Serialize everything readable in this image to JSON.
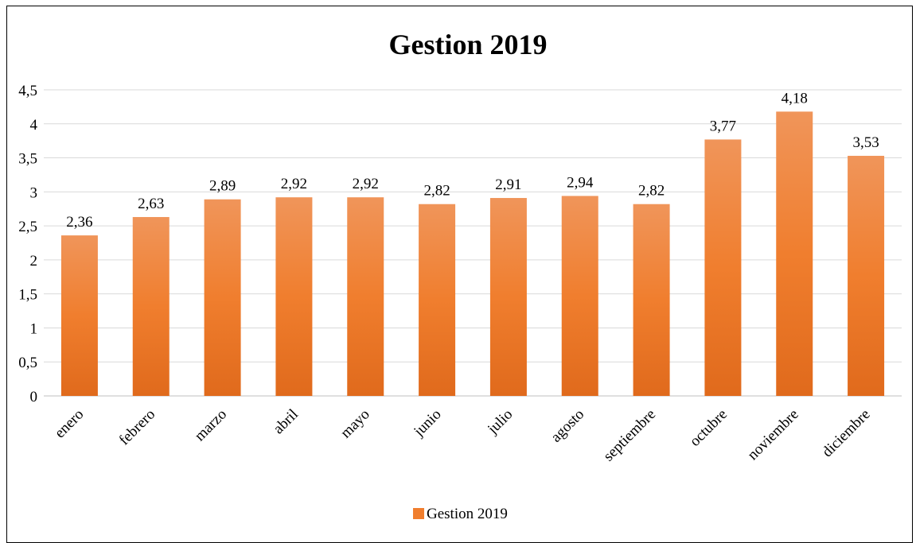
{
  "chart_data": {
    "type": "bar",
    "title": "Gestion 2019",
    "categories": [
      "enero",
      "febrero",
      "marzo",
      "abril",
      "mayo",
      "junio",
      "julio",
      "agosto",
      "septiembre",
      "octubre",
      "noviembre",
      "diciembre"
    ],
    "series": [
      {
        "name": "Gestion 2019",
        "values": [
          2.36,
          2.63,
          2.89,
          2.92,
          2.92,
          2.82,
          2.91,
          2.94,
          2.82,
          3.77,
          4.18,
          3.53
        ],
        "data_labels": [
          "2,36",
          "2,63",
          "2,89",
          "2,92",
          "2,92",
          "2,82",
          "2,91",
          "2,94",
          "2,82",
          "3,77",
          "4,18",
          "3,53"
        ]
      }
    ],
    "y_ticks": [
      "0",
      "0,5",
      "1",
      "1,5",
      "2",
      "2,5",
      "3",
      "3,5",
      "4",
      "4,5"
    ],
    "ylim": [
      0,
      4.5
    ],
    "xlabel": "",
    "ylabel": "",
    "grid": true,
    "legend": "bottom",
    "colors": {
      "bar_top": "#F0955A",
      "bar_mid": "#F07E2E",
      "bar_bottom": "#E06A1C",
      "grid": "#D9D9D9",
      "axis": "#BFBFBF"
    }
  }
}
